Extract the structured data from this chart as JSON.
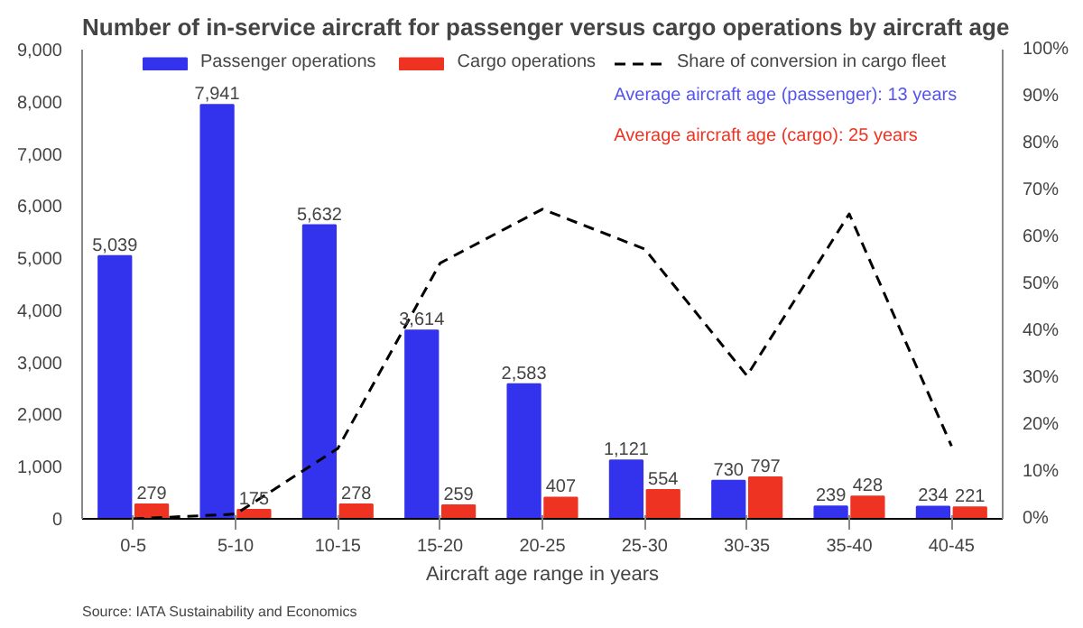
{
  "chart_data": {
    "type": "bar",
    "title": "Number of in-service aircraft for passenger versus cargo operations by aircraft age",
    "xlabel": "Aircraft age range in years",
    "categories": [
      "0-5",
      "5-10",
      "10-15",
      "15-20",
      "20-25",
      "25-30",
      "30-35",
      "35-40",
      "40-45"
    ],
    "series": [
      {
        "name": "Passenger operations",
        "color": "#3333ee",
        "values": [
          5039,
          7941,
          5632,
          3614,
          2583,
          1121,
          730,
          239,
          234
        ],
        "value_labels": [
          "5,039",
          "7,941",
          "5,632",
          "3,614",
          "2,583",
          "1,121",
          "730",
          "239",
          "234"
        ]
      },
      {
        "name": "Cargo operations",
        "color": "#ee3322",
        "values": [
          279,
          175,
          278,
          259,
          407,
          554,
          797,
          428,
          221
        ],
        "value_labels": [
          "279",
          "175",
          "278",
          "259",
          "407",
          "554",
          "797",
          "428",
          "221"
        ]
      },
      {
        "name": "Share of conversion in cargo fleet",
        "type": "line",
        "axis": "y2",
        "color": "#000000",
        "line_style": "dashed",
        "values": [
          0,
          1,
          15,
          54.5,
          66,
          57.5,
          30.5,
          65,
          15.5
        ]
      }
    ],
    "ylim": [
      0,
      9000
    ],
    "yticks": [
      {
        "value": 0,
        "label": "0"
      },
      {
        "value": 1000,
        "label": "1,000"
      },
      {
        "value": 2000,
        "label": "2,000"
      },
      {
        "value": 3000,
        "label": "3,000"
      },
      {
        "value": 4000,
        "label": "4,000"
      },
      {
        "value": 5000,
        "label": "5,000"
      },
      {
        "value": 6000,
        "label": "6,000"
      },
      {
        "value": 7000,
        "label": "7,000"
      },
      {
        "value": 8000,
        "label": "8,000"
      },
      {
        "value": 9000,
        "label": "9,000"
      }
    ],
    "y2lim": [
      0,
      100
    ],
    "y2ticks": [
      {
        "value": 0,
        "label": "0%"
      },
      {
        "value": 10,
        "label": "10%"
      },
      {
        "value": 20,
        "label": "20%"
      },
      {
        "value": 30,
        "label": "30%"
      },
      {
        "value": 40,
        "label": "40%"
      },
      {
        "value": 50,
        "label": "50%"
      },
      {
        "value": 60,
        "label": "60%"
      },
      {
        "value": 70,
        "label": "70%"
      },
      {
        "value": 80,
        "label": "80%"
      },
      {
        "value": 90,
        "label": "90%"
      },
      {
        "value": 100,
        "label": "100%"
      }
    ],
    "grid": false,
    "legend": "top",
    "annotations": [
      "Average aircraft age (passenger): 13 years",
      "Average aircraft age (cargo): 25 years",
      "Source: IATA Sustainability and Economics"
    ]
  }
}
